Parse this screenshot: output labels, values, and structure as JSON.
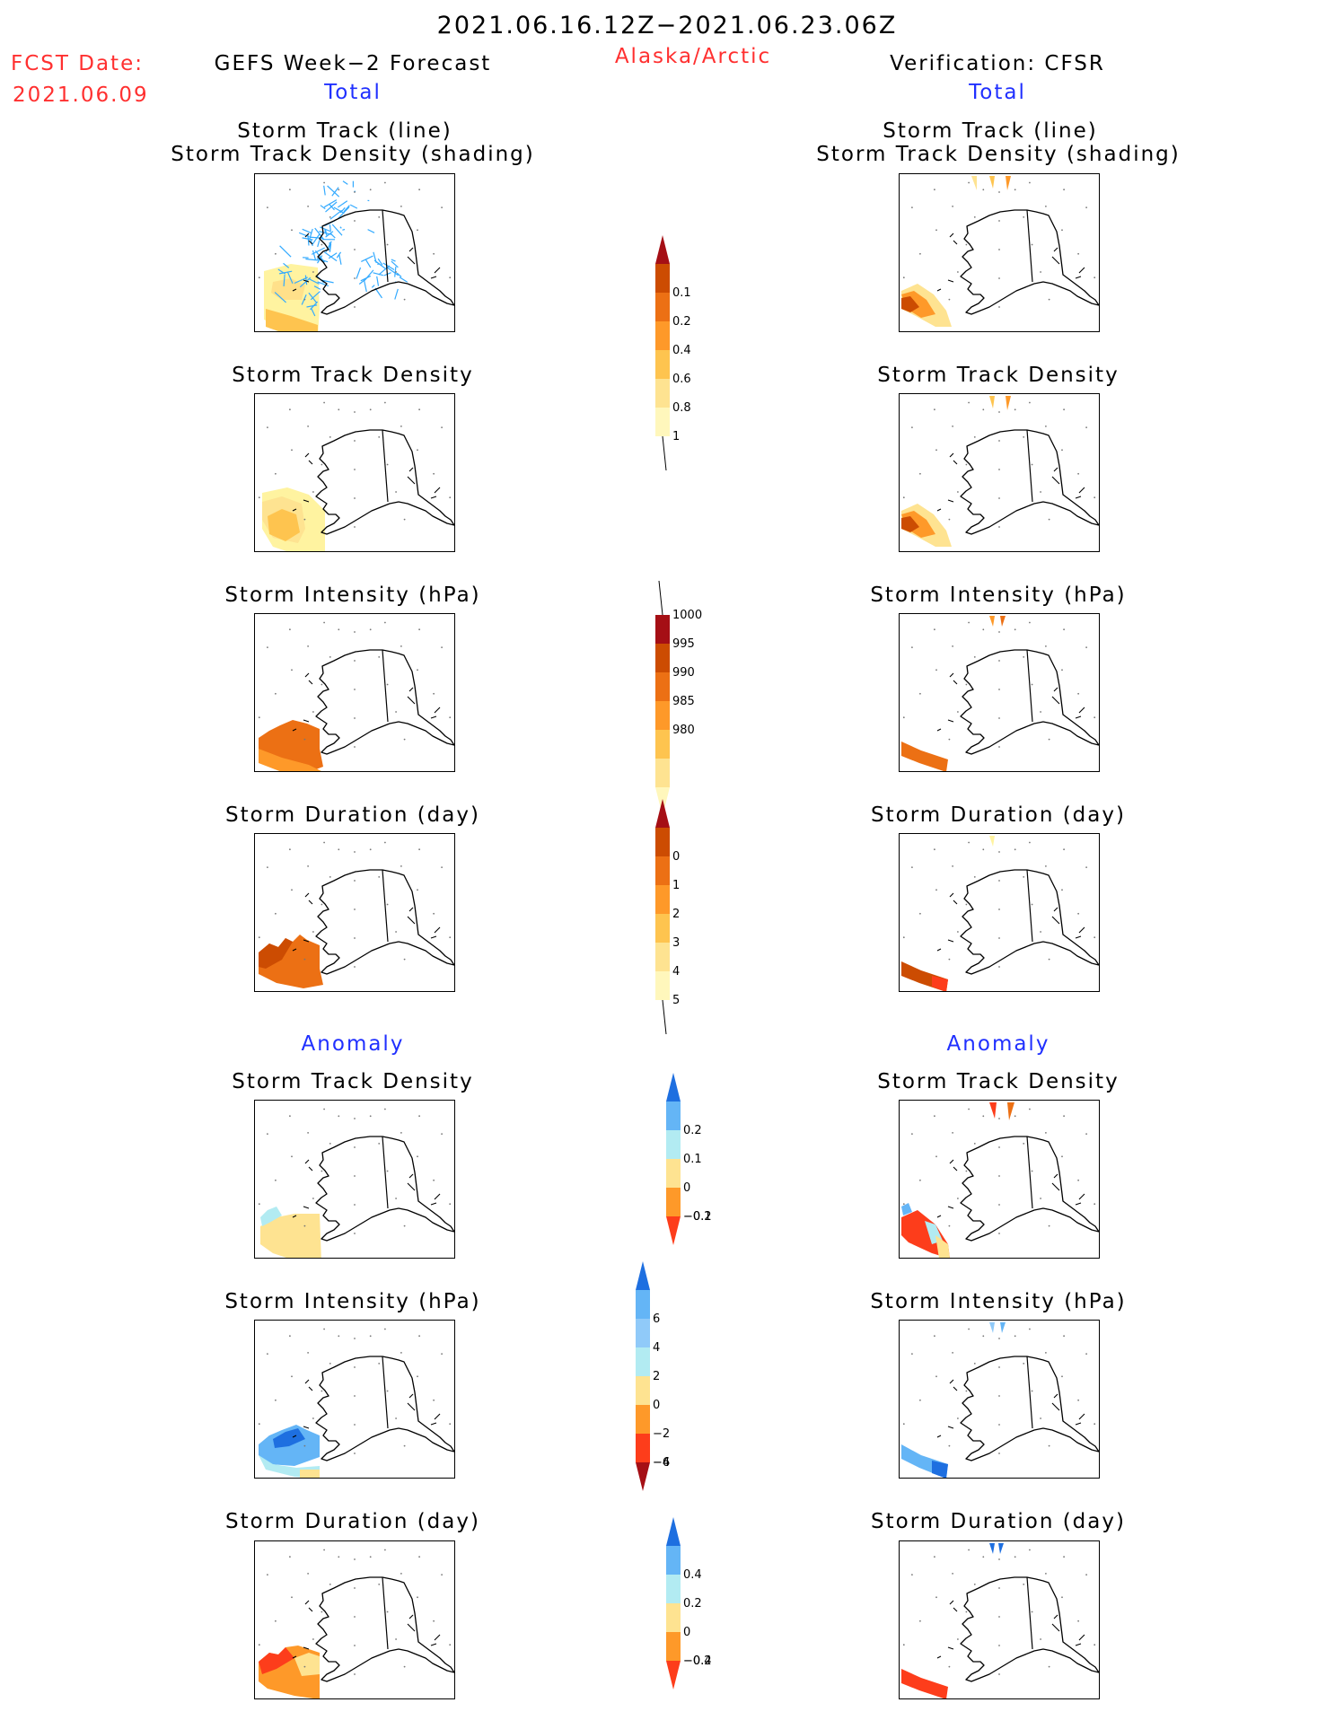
{
  "header": {
    "date_range": "2021.06.16.12Z−2021.06.23.06Z",
    "fcst_label": "FCST Date:",
    "fcst_date": "2021.06.09",
    "left_title": "GEFS Week−2 Forecast",
    "region": "Alaska/Arctic",
    "right_title": "Verification: CFSR",
    "total_label": "Total",
    "anomaly_label": "Anomaly"
  },
  "colors": {
    "title_red": "#ff3030",
    "label_blue": "#2030ff",
    "track_line": "#33aaff"
  },
  "panel_titles": {
    "track_line": "Storm Track (line)",
    "track_shading": "Storm Track Density (shading)",
    "density": "Storm Track Density",
    "intensity": "Storm Intensity (hPa)",
    "duration": "Storm Duration (day)"
  },
  "chart_data": [
    {
      "type": "heatmap",
      "name": "colorbar_density_total",
      "levels": [
        0.1,
        0.2,
        0.4,
        0.6,
        0.8,
        1
      ],
      "labels": [
        "0.1",
        "0.2",
        "0.4",
        "0.6",
        "0.8",
        "1"
      ],
      "colors": [
        "#fff7bc",
        "#fee391",
        "#fec44f",
        "#fe9929",
        "#ec7014",
        "#cc4c02",
        "#a50f15"
      ]
    },
    {
      "type": "heatmap",
      "name": "colorbar_intensity_total",
      "levels": [
        980,
        985,
        990,
        995,
        1000
      ],
      "labels": [
        "1000",
        "995",
        "990",
        "985",
        "980"
      ],
      "colors": [
        "#fff7bc",
        "#fee391",
        "#fec44f",
        "#fe9929",
        "#ec7014",
        "#cc4c02",
        "#a50f15"
      ]
    },
    {
      "type": "heatmap",
      "name": "colorbar_duration_total",
      "levels": [
        0,
        1,
        2,
        3,
        4,
        5
      ],
      "labels": [
        "0",
        "1",
        "2",
        "3",
        "4",
        "5"
      ],
      "colors": [
        "#fff7bc",
        "#fee391",
        "#fec44f",
        "#fe9929",
        "#ec7014",
        "#cc4c02",
        "#a50f15"
      ]
    },
    {
      "type": "heatmap",
      "name": "colorbar_density_anomaly",
      "levels": [
        -0.2,
        -0.1,
        0,
        0.1,
        0.2
      ],
      "labels": [
        "0.2",
        "0.1",
        "0",
        "−0.1",
        "−0.2"
      ],
      "colors": [
        "#fd3d1b",
        "#fe9929",
        "#fee391",
        "#b2ebf2",
        "#64b5f6",
        "#1e6fe0"
      ]
    },
    {
      "type": "heatmap",
      "name": "colorbar_intensity_anomaly",
      "levels": [
        -6,
        -4,
        -2,
        0,
        2,
        4,
        6
      ],
      "labels": [
        "6",
        "4",
        "2",
        "0",
        "−2",
        "−4",
        "−6"
      ],
      "colors": [
        "#a50f15",
        "#fd3d1b",
        "#fe9929",
        "#fee391",
        "#b2ebf2",
        "#90caf9",
        "#64b5f6",
        "#1e6fe0"
      ]
    },
    {
      "type": "heatmap",
      "name": "colorbar_duration_anomaly",
      "levels": [
        -0.4,
        -0.2,
        0,
        0.2,
        0.4
      ],
      "labels": [
        "0.4",
        "0.2",
        "0",
        "−0.2",
        "−0.4"
      ],
      "colors": [
        "#fd3d1b",
        "#fe9929",
        "#fee391",
        "#b2ebf2",
        "#64b5f6",
        "#1e6fe0"
      ]
    }
  ]
}
